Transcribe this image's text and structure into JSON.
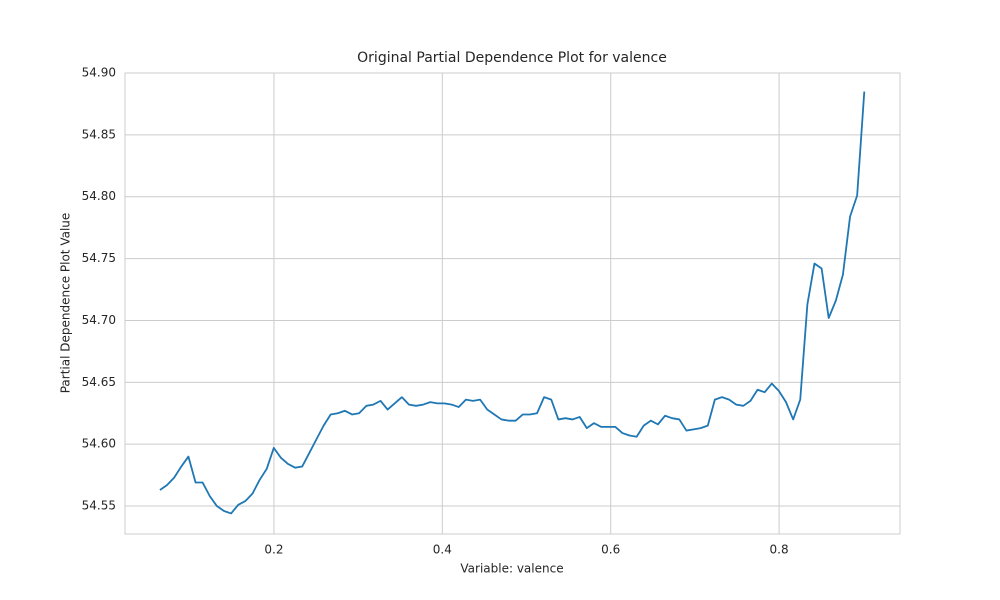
{
  "chart_data": {
    "type": "line",
    "title": "Original Partial Dependence Plot for valence",
    "x_label": "Variable: valence",
    "y_label": "Partial Dependence Plot Value",
    "color": "#1f77b4",
    "grid": true,
    "x": [
      0.0646,
      0.0731,
      0.0815,
      0.09,
      0.0984,
      0.1069,
      0.1153,
      0.1238,
      0.1322,
      0.1407,
      0.1491,
      0.1576,
      0.166,
      0.1745,
      0.1829,
      0.1914,
      0.1998,
      0.2083,
      0.2167,
      0.2252,
      0.2336,
      0.2421,
      0.2505,
      0.259,
      0.2674,
      0.2759,
      0.2843,
      0.2928,
      0.3012,
      0.3097,
      0.3181,
      0.3266,
      0.335,
      0.3435,
      0.3519,
      0.3604,
      0.3688,
      0.3773,
      0.3857,
      0.3942,
      0.4026,
      0.4111,
      0.4195,
      0.428,
      0.4364,
      0.4449,
      0.4533,
      0.4618,
      0.4702,
      0.4787,
      0.4871,
      0.4956,
      0.504,
      0.5125,
      0.5209,
      0.5294,
      0.5378,
      0.5463,
      0.5547,
      0.5632,
      0.5716,
      0.5801,
      0.5885,
      0.597,
      0.6054,
      0.6139,
      0.6223,
      0.6308,
      0.6392,
      0.6477,
      0.6561,
      0.6646,
      0.673,
      0.6815,
      0.6899,
      0.6984,
      0.7068,
      0.7153,
      0.7237,
      0.7322,
      0.7406,
      0.7491,
      0.7575,
      0.766,
      0.7744,
      0.7829,
      0.7913,
      0.7998,
      0.8082,
      0.8167,
      0.8251,
      0.8336,
      0.842,
      0.8505,
      0.8589,
      0.8674,
      0.8758,
      0.8843,
      0.8927,
      0.9012
    ],
    "values": [
      54.563,
      54.567,
      54.573,
      54.582,
      54.59,
      54.569,
      54.569,
      54.558,
      54.55,
      54.546,
      54.544,
      54.551,
      54.554,
      54.56,
      54.571,
      54.58,
      54.597,
      54.589,
      54.584,
      54.581,
      54.582,
      54.593,
      54.604,
      54.615,
      54.624,
      54.625,
      54.627,
      54.624,
      54.625,
      54.631,
      54.632,
      54.635,
      54.628,
      54.633,
      54.638,
      54.632,
      54.631,
      54.632,
      54.634,
      54.633,
      54.633,
      54.632,
      54.63,
      54.636,
      54.635,
      54.636,
      54.628,
      54.624,
      54.62,
      54.619,
      54.619,
      54.624,
      54.624,
      54.625,
      54.638,
      54.636,
      54.62,
      54.621,
      54.62,
      54.622,
      54.613,
      54.617,
      54.614,
      54.614,
      54.614,
      54.609,
      54.607,
      54.606,
      54.615,
      54.619,
      54.616,
      54.623,
      54.621,
      54.62,
      54.611,
      54.612,
      54.613,
      54.615,
      54.636,
      54.638,
      54.636,
      54.632,
      54.631,
      54.635,
      54.644,
      54.642,
      54.649,
      54.643,
      54.634,
      54.62,
      54.636,
      54.713,
      54.746,
      54.742,
      54.702,
      54.716,
      54.737,
      54.784,
      54.801,
      54.885
    ],
    "xlim": [
      0.0231,
      0.9436
    ],
    "ylim": [
      54.5274,
      54.9
    ],
    "xticks": [
      0.2,
      0.4,
      0.6,
      0.8
    ],
    "yticks": [
      54.55,
      {
        "value": 54.6,
        "label": "54.60"
      },
      54.65,
      {
        "value": 54.7,
        "label": "54.70"
      },
      54.75,
      {
        "value": 54.8,
        "label": "54.80"
      },
      54.85,
      {
        "value": 54.9,
        "label": "54.90"
      }
    ]
  }
}
